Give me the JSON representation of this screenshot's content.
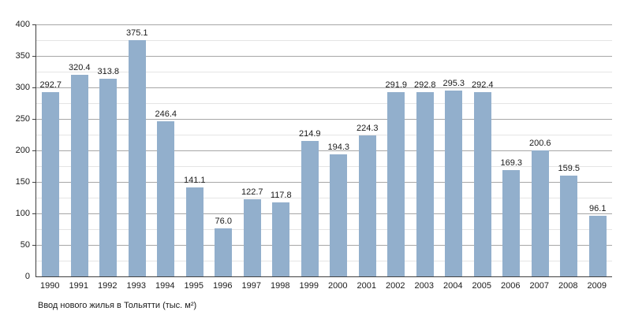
{
  "chart_data": {
    "type": "bar",
    "title": "Ввод нового жилья в Тольятти (тыс. м²)",
    "categories": [
      "1990",
      "1991",
      "1992",
      "1993",
      "1994",
      "1995",
      "1996",
      "1997",
      "1998",
      "1999",
      "2000",
      "2001",
      "2002",
      "2003",
      "2004",
      "2005",
      "2006",
      "2007",
      "2008",
      "2009"
    ],
    "values": [
      292.7,
      320.4,
      313.8,
      375.1,
      246.4,
      141.1,
      76.0,
      122.7,
      117.8,
      214.9,
      194.3,
      224.3,
      291.9,
      292.8,
      295.3,
      292.4,
      169.3,
      200.6,
      159.5,
      96.1
    ],
    "xlabel": "",
    "ylabel": "",
    "ylim": [
      0,
      400
    ],
    "y_major_step": 50,
    "y_minor_step": 25,
    "grid": true,
    "legend": "none",
    "value_label_decimals": 1,
    "colors": {
      "bar": "#92afcc",
      "grid_major": "#a6a6a6",
      "grid_minor": "#e4e4e4",
      "axis": "#404040",
      "text": "#1a1a1a"
    }
  }
}
